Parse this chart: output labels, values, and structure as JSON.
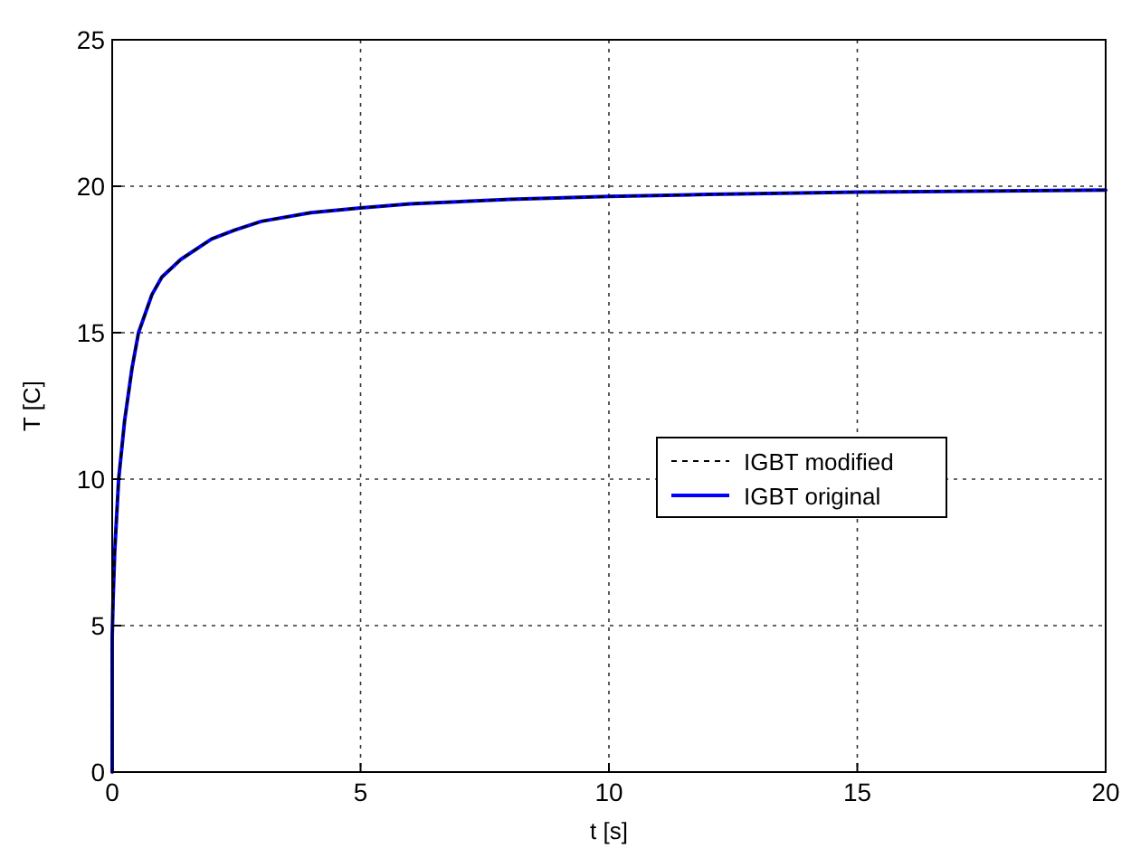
{
  "chart_data": {
    "type": "line",
    "xlabel": "t [s]",
    "ylabel": "T [C]",
    "xlim": [
      0,
      20
    ],
    "ylim": [
      0,
      25
    ],
    "xticks": [
      0,
      5,
      10,
      15,
      20
    ],
    "yticks": [
      0,
      5,
      10,
      15,
      20,
      25
    ],
    "grid": true,
    "legend": "right",
    "series": [
      {
        "name": "IGBT modified",
        "color": "#000000",
        "line_style": "dashed",
        "x": [
          0,
          0,
          0.02,
          0.05,
          0.13,
          0.25,
          0.4,
          0.53,
          0.8,
          1,
          1.38,
          2,
          2.46,
          3,
          4,
          5,
          6,
          8,
          10,
          12,
          15,
          20
        ],
        "values": [
          0,
          4.6,
          6,
          7.5,
          10,
          12,
          13.8,
          15,
          16.3,
          16.9,
          17.5,
          18.2,
          18.5,
          18.8,
          19.1,
          19.26,
          19.4,
          19.55,
          19.65,
          19.72,
          19.8,
          19.87
        ]
      },
      {
        "name": "IGBT original",
        "color": "#0000ff",
        "line_style": "solid",
        "x": [
          0,
          0,
          0.02,
          0.05,
          0.13,
          0.25,
          0.4,
          0.53,
          0.8,
          1,
          1.38,
          2,
          2.46,
          3,
          4,
          5,
          6,
          8,
          10,
          12,
          15,
          20
        ],
        "values": [
          0,
          4.6,
          6,
          7.5,
          10,
          12,
          13.8,
          15,
          16.3,
          16.9,
          17.5,
          18.2,
          18.5,
          18.8,
          19.1,
          19.26,
          19.4,
          19.55,
          19.65,
          19.72,
          19.8,
          19.87
        ]
      }
    ]
  }
}
